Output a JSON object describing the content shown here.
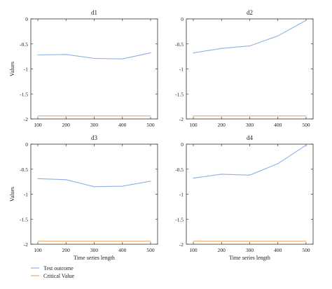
{
  "colors": {
    "test_outcome": "#8fb0e6",
    "critical_value": "#f2a860",
    "axis": "#333333",
    "background": "#ffffff"
  },
  "legend": {
    "placement": "bottom-left",
    "entries": [
      "Test outcome",
      "Critical Value"
    ]
  },
  "chart_data": [
    {
      "type": "line",
      "title": "d1",
      "xlabel": "",
      "ylabel": "Values",
      "x": [
        100,
        200,
        300,
        400,
        500
      ],
      "xlim": [
        75,
        525
      ],
      "ylim": [
        -2,
        0
      ],
      "xticks": [
        "100",
        "200",
        "300",
        "400",
        "500"
      ],
      "yticks": [
        "0",
        "-0.5",
        "-1",
        "-1.5",
        "-2"
      ],
      "grid": false,
      "series": [
        {
          "name": "Test outcome",
          "values": [
            -0.72,
            -0.71,
            -0.79,
            -0.8,
            -0.68
          ]
        },
        {
          "name": "Critical Value",
          "values": [
            -1.94,
            -1.94,
            -1.94,
            -1.94,
            -1.94
          ]
        }
      ]
    },
    {
      "type": "line",
      "title": "d2",
      "xlabel": "",
      "ylabel": "",
      "x": [
        100,
        200,
        300,
        400,
        500
      ],
      "xlim": [
        75,
        525
      ],
      "ylim": [
        -2,
        0
      ],
      "xticks": [
        "100",
        "200",
        "300",
        "400",
        "500"
      ],
      "yticks": [
        "0",
        "-0.5",
        "-1",
        "-1.5",
        "-2"
      ],
      "grid": false,
      "series": [
        {
          "name": "Test outcome",
          "values": [
            -0.68,
            -0.59,
            -0.54,
            -0.34,
            -0.03
          ]
        },
        {
          "name": "Critical Value",
          "values": [
            -1.94,
            -1.94,
            -1.94,
            -1.94,
            -1.94
          ]
        }
      ]
    },
    {
      "type": "line",
      "title": "d3",
      "xlabel": "Time series length",
      "ylabel": "Values",
      "x": [
        100,
        200,
        300,
        400,
        500
      ],
      "xlim": [
        75,
        525
      ],
      "ylim": [
        -2,
        0
      ],
      "xticks": [
        "100",
        "200",
        "300",
        "400",
        "500"
      ],
      "yticks": [
        "0",
        "-0.5",
        "-1",
        "-1.5",
        "-2"
      ],
      "grid": false,
      "series": [
        {
          "name": "Test outcome",
          "values": [
            -0.69,
            -0.71,
            -0.85,
            -0.84,
            -0.74
          ]
        },
        {
          "name": "Critical Value",
          "values": [
            -1.94,
            -1.94,
            -1.94,
            -1.94,
            -1.94
          ]
        }
      ]
    },
    {
      "type": "line",
      "title": "d4",
      "xlabel": "Time series length",
      "ylabel": "",
      "x": [
        100,
        200,
        300,
        400,
        500
      ],
      "xlim": [
        75,
        525
      ],
      "ylim": [
        -2,
        0
      ],
      "xticks": [
        "100",
        "200",
        "300",
        "400",
        "500"
      ],
      "yticks": [
        "0",
        "-0.5",
        "-1",
        "-1.5",
        "-2"
      ],
      "grid": false,
      "series": [
        {
          "name": "Test outcome",
          "values": [
            -0.68,
            -0.6,
            -0.62,
            -0.39,
            -0.02
          ]
        },
        {
          "name": "Critical Value",
          "values": [
            -1.94,
            -1.94,
            -1.94,
            -1.94,
            -1.94
          ]
        }
      ]
    }
  ]
}
